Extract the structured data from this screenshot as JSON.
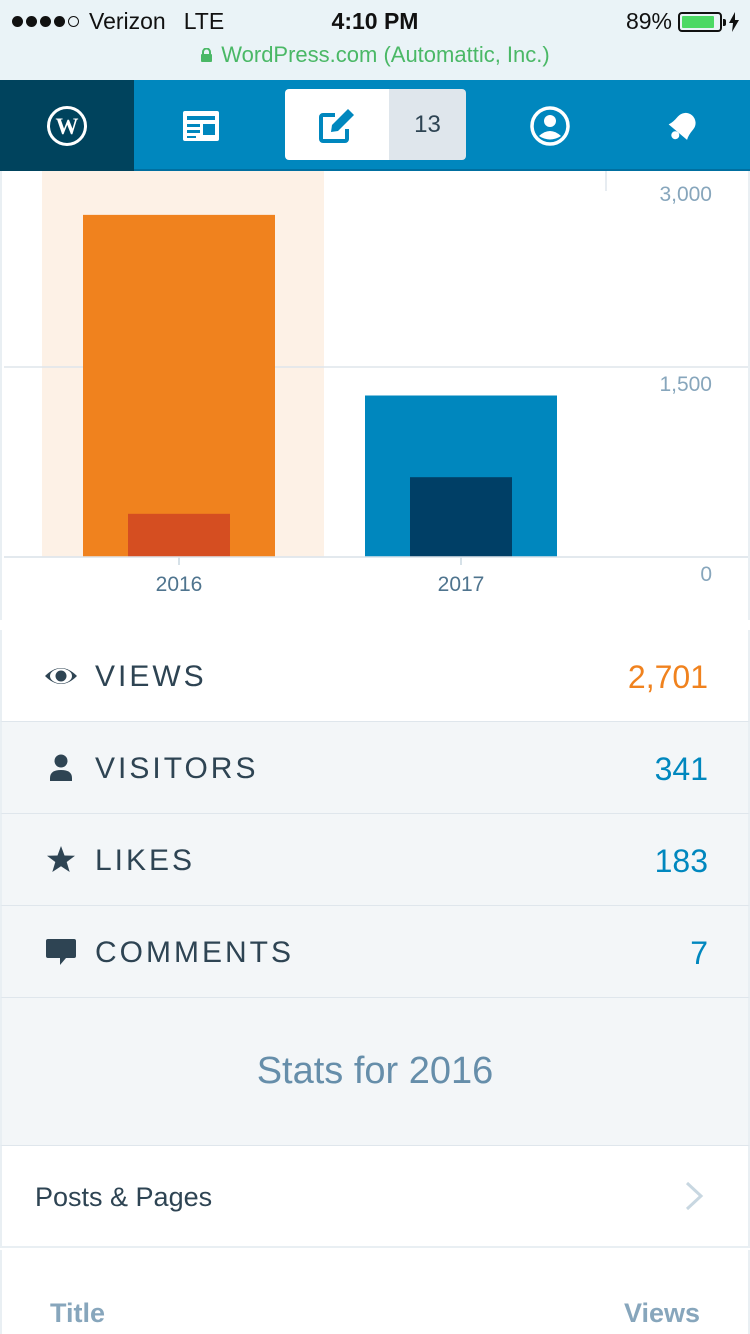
{
  "status_bar": {
    "carrier": "Verizon",
    "network": "LTE",
    "time": "4:10 PM",
    "battery": "89%",
    "battery_level": 0.89,
    "url": "WordPress.com (Automattic, Inc.)"
  },
  "masterbar": {
    "drafts_count": "13",
    "icons": [
      "wordpress-logo-icon",
      "reader-icon",
      "write-icon",
      "me-icon",
      "notifications-icon"
    ]
  },
  "colors": {
    "accent_blue": "#0087be",
    "dark_blue": "#00435d",
    "views_orange": "#f0821e",
    "visitors_orange": "#d54e21",
    "visitors_blue": "#003f66",
    "highlight_bg": "#fdf1e6"
  },
  "chart_data": {
    "type": "bar",
    "categories": [
      "2016",
      "2017"
    ],
    "series": [
      {
        "values": [
          2701,
          1275
        ]
      },
      {
        "values": [
          341,
          630
        ]
      }
    ],
    "y_ticks": [
      "0",
      "1,500",
      "3,000"
    ],
    "ylim": [
      0,
      3000
    ],
    "selected_category": "2016",
    "grid": true
  },
  "stats": [
    {
      "icon": "eye-icon",
      "label": "VIEWS",
      "value": "2,701"
    },
    {
      "icon": "person-icon",
      "label": "VISITORS",
      "value": "341"
    },
    {
      "icon": "star-icon",
      "label": "LIKES",
      "value": "183"
    },
    {
      "icon": "comment-icon",
      "label": "COMMENTS",
      "value": "7"
    }
  ],
  "period_title": "Stats for 2016",
  "section": {
    "title": "Posts & Pages",
    "columns": [
      "Title",
      "Views"
    ]
  }
}
